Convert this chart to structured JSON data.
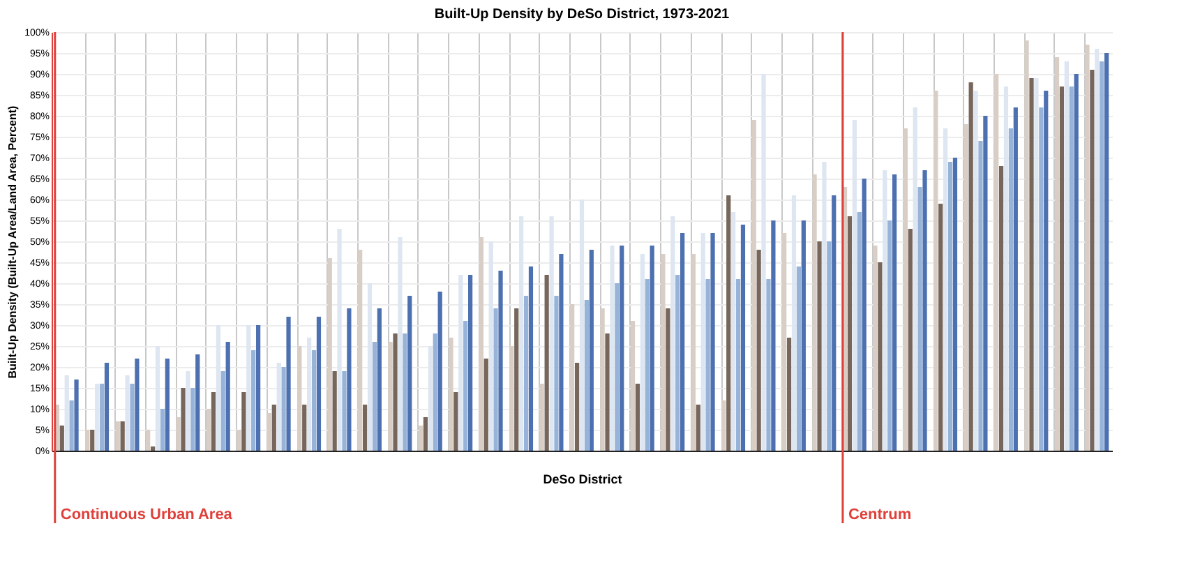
{
  "chart_data": {
    "type": "bar",
    "title": "Built-Up Density by DeSo District, 1973-2021",
    "xlabel": "DeSo District",
    "ylabel": "Built-Up Density (Built-Up Area/Land Area, Percent)",
    "categories": [
      null,
      null,
      null,
      null,
      null,
      null,
      null,
      null,
      null,
      null,
      null,
      null,
      null,
      null,
      null,
      null,
      null,
      null,
      null,
      null,
      null,
      null,
      null,
      null,
      null,
      null,
      null,
      null,
      null,
      null,
      null,
      null,
      null,
      null,
      null
    ],
    "series": [
      {
        "color": "#d8cec6",
        "values": [
          11,
          5,
          7,
          5,
          8,
          10,
          5,
          9,
          25,
          46,
          48,
          26,
          6,
          27,
          51,
          25,
          16,
          35,
          34,
          31,
          47,
          47,
          12,
          79,
          52,
          66,
          63,
          49,
          77,
          86,
          78,
          90,
          98,
          94,
          97
        ]
      },
      {
        "color": "#76665c",
        "values": [
          6,
          5,
          7,
          1,
          15,
          14,
          14,
          11,
          11,
          19,
          11,
          28,
          8,
          14,
          22,
          34,
          42,
          21,
          28,
          16,
          34,
          11,
          61,
          48,
          27,
          50,
          56,
          45,
          53,
          59,
          88,
          68,
          89,
          87,
          91
        ]
      },
      {
        "color": "#dde6f1",
        "values": [
          18,
          16,
          18,
          25,
          19,
          30,
          30,
          21,
          27,
          53,
          40,
          51,
          25,
          42,
          50,
          56,
          56,
          60,
          49,
          47,
          56,
          52,
          57,
          90,
          61,
          69,
          79,
          67,
          82,
          77,
          86,
          87,
          89,
          93,
          96
        ]
      },
      {
        "color": "#97b3d8",
        "values": [
          12,
          16,
          16,
          10,
          15,
          19,
          24,
          20,
          24,
          19,
          26,
          28,
          28,
          31,
          34,
          37,
          37,
          36,
          40,
          41,
          42,
          41,
          41,
          41,
          44,
          50,
          57,
          55,
          63,
          69,
          74,
          77,
          82,
          87,
          93
        ]
      },
      {
        "color": "#4d70b0",
        "values": [
          17,
          21,
          22,
          22,
          23,
          26,
          30,
          32,
          32,
          34,
          34,
          37,
          38,
          42,
          43,
          44,
          47,
          48,
          49,
          49,
          52,
          52,
          54,
          55,
          55,
          61,
          65,
          66,
          67,
          70,
          80,
          82,
          86,
          90,
          95
        ]
      }
    ],
    "ylim": [
      0,
      100
    ],
    "yticks": [
      {
        "value": 0,
        "label": "0%"
      },
      {
        "value": 5,
        "label": "5%"
      },
      {
        "value": 10,
        "label": "10%"
      },
      {
        "value": 15,
        "label": "15%"
      },
      {
        "value": 20,
        "label": "20%"
      },
      {
        "value": 25,
        "label": "25%"
      },
      {
        "value": 30,
        "label": "30%"
      },
      {
        "value": 35,
        "label": "35%"
      },
      {
        "value": 40,
        "label": "40%"
      },
      {
        "value": 45,
        "label": "45%"
      },
      {
        "value": 50,
        "label": "50%"
      },
      {
        "value": 55,
        "label": "55%"
      },
      {
        "value": 60,
        "label": "60%"
      },
      {
        "value": 65,
        "label": "65%"
      },
      {
        "value": 70,
        "label": "70%"
      },
      {
        "value": 75,
        "label": "75%"
      },
      {
        "value": 80,
        "label": "80%"
      },
      {
        "value": 85,
        "label": "85%"
      },
      {
        "value": 90,
        "label": "90%"
      },
      {
        "value": 95,
        "label": "95%"
      },
      {
        "value": 100,
        "label": "100%"
      }
    ],
    "annotations": [
      "Continuous Urban Area",
      "Centrum"
    ],
    "grid": true
  }
}
